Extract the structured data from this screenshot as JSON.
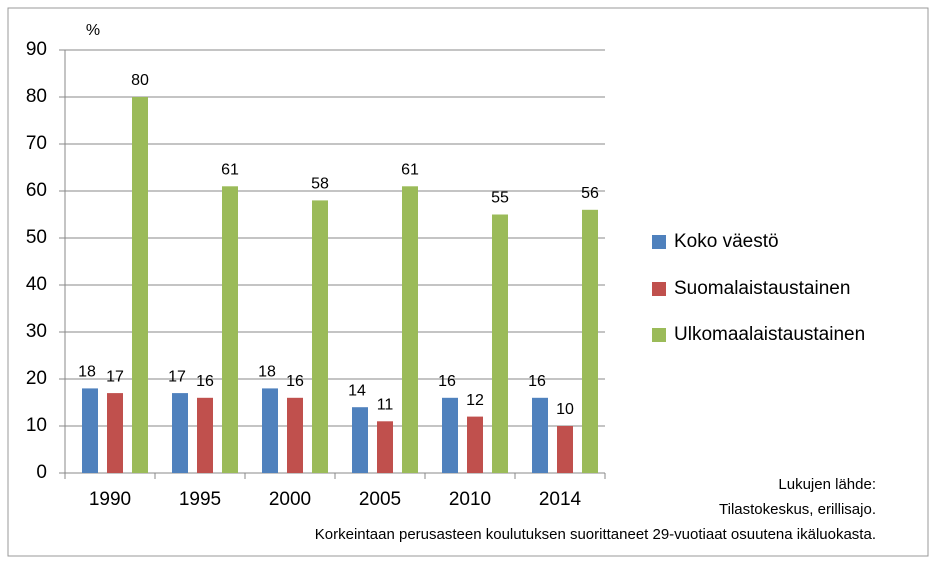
{
  "chart_data": {
    "type": "bar",
    "y_label": "%",
    "categories": [
      "1990",
      "1995",
      "2000",
      "2005",
      "2010",
      "2014"
    ],
    "series": [
      {
        "name": "Koko väestö",
        "color": "#4f81bd",
        "values": [
          18,
          17,
          18,
          14,
          16,
          16
        ]
      },
      {
        "name": "Suomalaistaustainen",
        "color": "#c0504d",
        "values": [
          17,
          16,
          16,
          11,
          12,
          10
        ]
      },
      {
        "name": "Ulkomaalaistaustainen",
        "color": "#9bbb59",
        "values": [
          80,
          61,
          58,
          61,
          55,
          56
        ]
      }
    ],
    "ylim": [
      0,
      90
    ],
    "yticks": [
      0,
      10,
      20,
      30,
      40,
      50,
      60,
      70,
      80,
      90
    ],
    "grid": true,
    "legend": "right",
    "notes": [
      "Lukujen lähde:",
      "Tilastokeskus, erillisajo.",
      "Korkeintaan perusasteen koulutuksen suorittaneet 29-vuotiaat osuutena ikäluokasta."
    ]
  }
}
